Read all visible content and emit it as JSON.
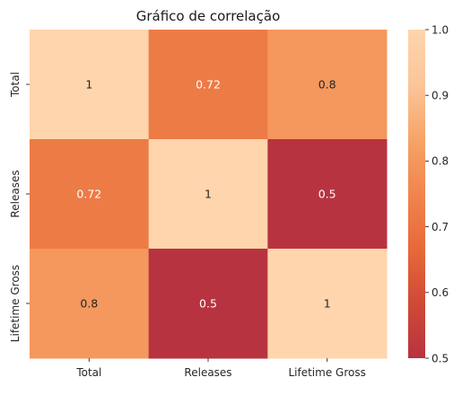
{
  "chart_data": {
    "type": "heatmap",
    "title": "Gráfico de correlação",
    "x_categories": [
      "Total",
      "Releases",
      "Lifetime Gross"
    ],
    "y_categories": [
      "Total",
      "Releases",
      "Lifetime Gross"
    ],
    "values": [
      [
        1,
        0.72,
        0.8
      ],
      [
        0.72,
        1,
        0.5
      ],
      [
        0.8,
        0.5,
        1
      ]
    ],
    "annotations": [
      [
        "1",
        "0.72",
        "0.8"
      ],
      [
        "0.72",
        "1",
        "0.5"
      ],
      [
        "0.8",
        "0.5",
        "1"
      ]
    ],
    "colorbar": {
      "range": [
        0.5,
        1.0
      ],
      "ticks": [
        "0.5",
        "0.6",
        "0.7",
        "0.8",
        "0.9",
        "1.0"
      ]
    },
    "colormap": [
      "#b83340",
      "#cf4a36",
      "#e8693a",
      "#f0854d",
      "#f6a468",
      "#fcc59a",
      "#fed5ac"
    ],
    "grid": false
  }
}
